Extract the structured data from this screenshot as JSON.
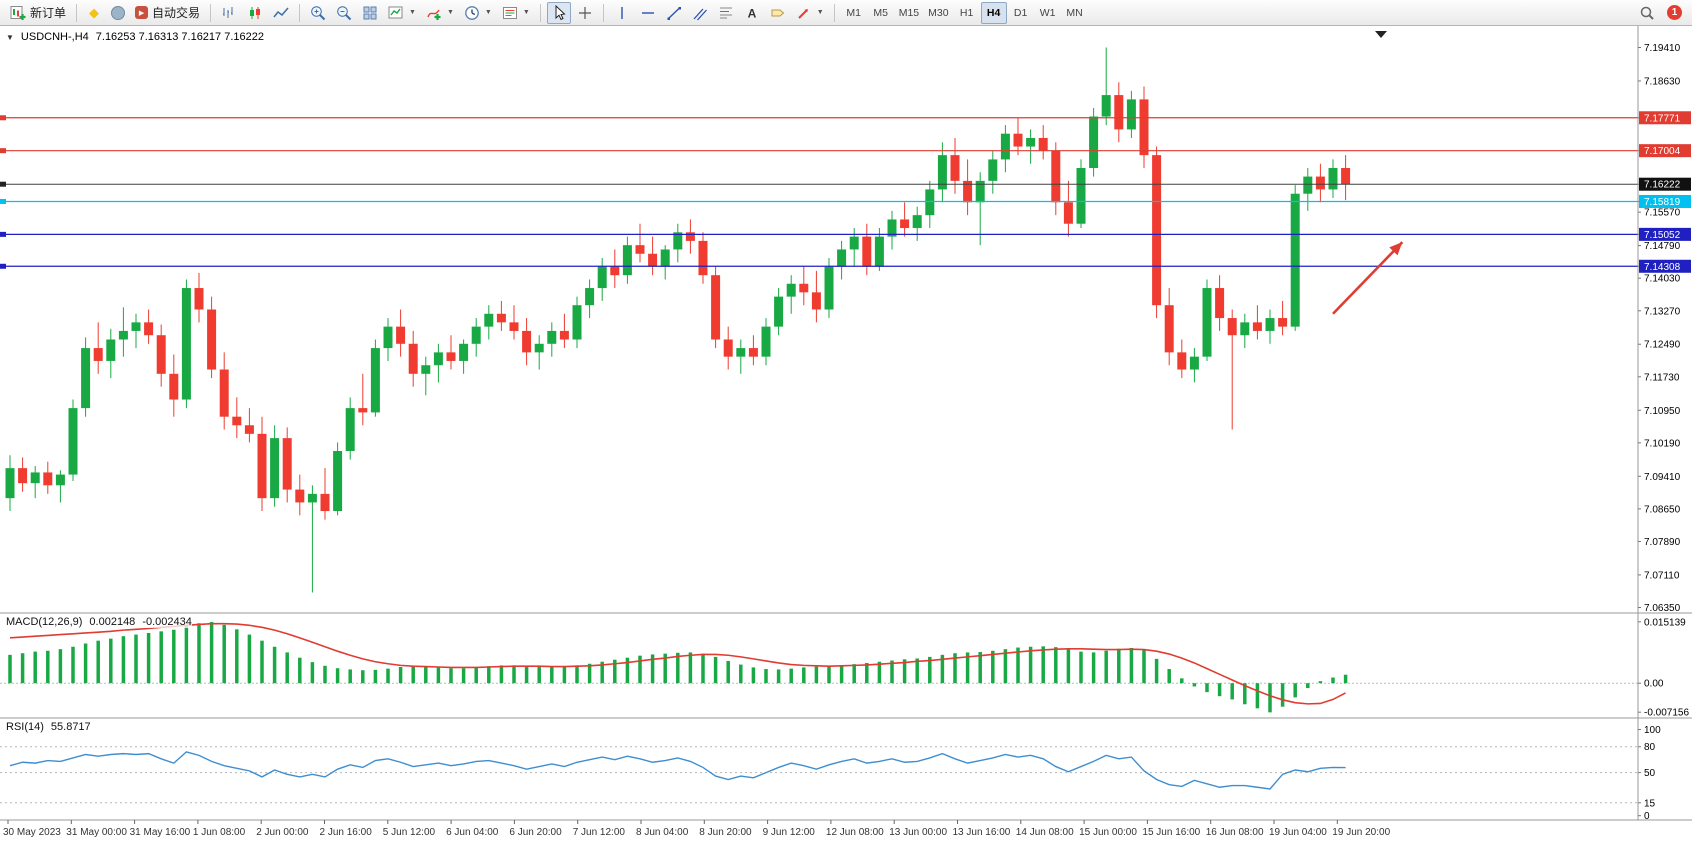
{
  "toolbar": {
    "new_order_label": "新订单",
    "autotrading_label": "自动交易",
    "timeframes": [
      "M1",
      "M5",
      "M15",
      "M30",
      "H1",
      "H4",
      "D1",
      "W1",
      "MN"
    ],
    "active_timeframe": "H4",
    "notification_count": "1"
  },
  "chart_data": {
    "main": {
      "type": "candlestick",
      "symbol": "USDCNH-,H4",
      "ohlc_label": "7.16253 7.16313 7.16217 7.16222",
      "ylim": [
        7.0635,
        7.1941
      ],
      "up_color": "#18a944",
      "down_color": "#ef3b30",
      "y_ticks": [
        {
          "label": "7.19410"
        },
        {
          "label": "7.18630"
        },
        {
          "label": "7.17771",
          "badge": "#e03c32"
        },
        {
          "label": "7.17004",
          "badge": "#e03c32"
        },
        {
          "label": "7.16222",
          "badge": "#111111"
        },
        {
          "label": "7.15819",
          "badge": "#00c0ef"
        },
        {
          "label": "7.15570"
        },
        {
          "label": "7.15052",
          "badge": "#2020c0"
        },
        {
          "label": "7.14790"
        },
        {
          "label": "7.14308",
          "badge": "#2020c0"
        },
        {
          "label": "7.14030"
        },
        {
          "label": "7.13270"
        },
        {
          "label": "7.12490"
        },
        {
          "label": "7.11730"
        },
        {
          "label": "7.10950"
        },
        {
          "label": "7.10190"
        },
        {
          "label": "7.09410"
        },
        {
          "label": "7.08650"
        },
        {
          "label": "7.07890"
        },
        {
          "label": "7.07110"
        },
        {
          "label": "7.06350"
        }
      ],
      "hlines": [
        {
          "price": 7.17771,
          "color": "#e03c32"
        },
        {
          "price": 7.17004,
          "color": "#e03c32"
        },
        {
          "price": 7.15819,
          "color": "#00c0ef"
        },
        {
          "price": 7.15052,
          "color": "#2020c0"
        },
        {
          "price": 7.14308,
          "color": "#2020c0"
        }
      ],
      "current_price": {
        "value": 7.16222,
        "line_color": "#404040"
      },
      "arrow_annotation": {
        "color": "#e03c32",
        "from": {
          "index": 105.0,
          "price": 7.132
        },
        "to": {
          "index": 110.5,
          "price": 7.1487
        }
      },
      "x_labels": [
        "30 May 2023",
        "31 May 00:00",
        "31 May 16:00",
        "1 Jun 08:00",
        "2 Jun 00:00",
        "2 Jun 16:00",
        "5 Jun 12:00",
        "6 Jun 04:00",
        "6 Jun 20:00",
        "7 Jun 12:00",
        "8 Jun 04:00",
        "8 Jun 20:00",
        "9 Jun 12:00",
        "12 Jun 08:00",
        "13 Jun 00:00",
        "13 Jun 16:00",
        "14 Jun 08:00",
        "15 Jun 00:00",
        "15 Jun 16:00",
        "16 Jun 08:00",
        "19 Jun 04:00",
        "19 Jun 20:00"
      ],
      "candles": [
        [
          7.089,
          7.099,
          7.086,
          7.096
        ],
        [
          7.096,
          7.0985,
          7.0905,
          7.0925
        ],
        [
          7.0925,
          7.0965,
          7.089,
          7.095
        ],
        [
          7.095,
          7.0975,
          7.09,
          7.092
        ],
        [
          7.092,
          7.0955,
          7.088,
          7.0945
        ],
        [
          7.0945,
          7.112,
          7.093,
          7.11
        ],
        [
          7.11,
          7.1265,
          7.108,
          7.124
        ],
        [
          7.124,
          7.13,
          7.118,
          7.121
        ],
        [
          7.121,
          7.1285,
          7.117,
          7.126
        ],
        [
          7.126,
          7.1335,
          7.122,
          7.128
        ],
        [
          7.128,
          7.132,
          7.124,
          7.13
        ],
        [
          7.13,
          7.133,
          7.125,
          7.127
        ],
        [
          7.127,
          7.1295,
          7.115,
          7.118
        ],
        [
          7.118,
          7.1225,
          7.108,
          7.112
        ],
        [
          7.112,
          7.14,
          7.11,
          7.138
        ],
        [
          7.138,
          7.1415,
          7.13,
          7.133
        ],
        [
          7.133,
          7.136,
          7.117,
          7.119
        ],
        [
          7.119,
          7.123,
          7.105,
          7.108
        ],
        [
          7.108,
          7.1125,
          7.103,
          7.106
        ],
        [
          7.106,
          7.11,
          7.102,
          7.104
        ],
        [
          7.104,
          7.108,
          7.086,
          7.089
        ],
        [
          7.089,
          7.106,
          7.087,
          7.103
        ],
        [
          7.103,
          7.1055,
          7.088,
          7.091
        ],
        [
          7.091,
          7.0945,
          7.085,
          7.088
        ],
        [
          7.088,
          7.092,
          7.067,
          7.09
        ],
        [
          7.09,
          7.096,
          7.084,
          7.086
        ],
        [
          7.086,
          7.102,
          7.085,
          7.1
        ],
        [
          7.1,
          7.1125,
          7.098,
          7.11
        ],
        [
          7.11,
          7.118,
          7.106,
          7.109
        ],
        [
          7.109,
          7.126,
          7.108,
          7.124
        ],
        [
          7.124,
          7.131,
          7.121,
          7.129
        ],
        [
          7.129,
          7.133,
          7.122,
          7.125
        ],
        [
          7.125,
          7.128,
          7.115,
          7.118
        ],
        [
          7.118,
          7.122,
          7.113,
          7.12
        ],
        [
          7.12,
          7.125,
          7.116,
          7.123
        ],
        [
          7.123,
          7.127,
          7.119,
          7.121
        ],
        [
          7.121,
          7.126,
          7.118,
          7.125
        ],
        [
          7.125,
          7.131,
          7.122,
          7.129
        ],
        [
          7.129,
          7.134,
          7.126,
          7.132
        ],
        [
          7.132,
          7.135,
          7.128,
          7.13
        ],
        [
          7.13,
          7.134,
          7.126,
          7.128
        ],
        [
          7.128,
          7.131,
          7.12,
          7.123
        ],
        [
          7.123,
          7.127,
          7.119,
          7.125
        ],
        [
          7.125,
          7.13,
          7.122,
          7.128
        ],
        [
          7.128,
          7.132,
          7.124,
          7.126
        ],
        [
          7.126,
          7.136,
          7.124,
          7.134
        ],
        [
          7.134,
          7.14,
          7.131,
          7.138
        ],
        [
          7.138,
          7.145,
          7.135,
          7.143
        ],
        [
          7.143,
          7.147,
          7.138,
          7.141
        ],
        [
          7.141,
          7.15,
          7.139,
          7.148
        ],
        [
          7.148,
          7.153,
          7.144,
          7.146
        ],
        [
          7.146,
          7.15,
          7.141,
          7.143
        ],
        [
          7.143,
          7.148,
          7.14,
          7.147
        ],
        [
          7.147,
          7.153,
          7.144,
          7.151
        ],
        [
          7.151,
          7.154,
          7.146,
          7.149
        ],
        [
          7.149,
          7.151,
          7.139,
          7.141
        ],
        [
          7.141,
          7.143,
          7.124,
          7.126
        ],
        [
          7.126,
          7.129,
          7.119,
          7.122
        ],
        [
          7.122,
          7.126,
          7.118,
          7.124
        ],
        [
          7.124,
          7.127,
          7.12,
          7.122
        ],
        [
          7.122,
          7.131,
          7.12,
          7.129
        ],
        [
          7.129,
          7.138,
          7.127,
          7.136
        ],
        [
          7.136,
          7.141,
          7.132,
          7.139
        ],
        [
          7.139,
          7.143,
          7.134,
          7.137
        ],
        [
          7.137,
          7.142,
          7.13,
          7.133
        ],
        [
          7.133,
          7.145,
          7.131,
          7.143
        ],
        [
          7.143,
          7.149,
          7.14,
          7.147
        ],
        [
          7.147,
          7.152,
          7.143,
          7.15
        ],
        [
          7.15,
          7.153,
          7.141,
          7.143
        ],
        [
          7.143,
          7.152,
          7.142,
          7.15
        ],
        [
          7.15,
          7.156,
          7.147,
          7.154
        ],
        [
          7.154,
          7.158,
          7.15,
          7.152
        ],
        [
          7.152,
          7.157,
          7.149,
          7.155
        ],
        [
          7.155,
          7.163,
          7.152,
          7.161
        ],
        [
          7.161,
          7.172,
          7.158,
          7.169
        ],
        [
          7.169,
          7.173,
          7.16,
          7.163
        ],
        [
          7.163,
          7.168,
          7.155,
          7.158
        ],
        [
          7.158,
          7.165,
          7.148,
          7.163
        ],
        [
          7.163,
          7.17,
          7.16,
          7.168
        ],
        [
          7.168,
          7.176,
          7.165,
          7.174
        ],
        [
          7.174,
          7.1777,
          7.169,
          7.171
        ],
        [
          7.171,
          7.175,
          7.167,
          7.173
        ],
        [
          7.173,
          7.176,
          7.168,
          7.17
        ],
        [
          7.17,
          7.172,
          7.155,
          7.158
        ],
        [
          7.158,
          7.163,
          7.15,
          7.153
        ],
        [
          7.153,
          7.168,
          7.152,
          7.166
        ],
        [
          7.166,
          7.18,
          7.164,
          7.178
        ],
        [
          7.178,
          7.1941,
          7.176,
          7.183
        ],
        [
          7.183,
          7.186,
          7.172,
          7.175
        ],
        [
          7.175,
          7.184,
          7.173,
          7.182
        ],
        [
          7.182,
          7.185,
          7.166,
          7.169
        ],
        [
          7.169,
          7.171,
          7.131,
          7.134
        ],
        [
          7.134,
          7.138,
          7.12,
          7.123
        ],
        [
          7.123,
          7.126,
          7.117,
          7.119
        ],
        [
          7.119,
          7.124,
          7.116,
          7.122
        ],
        [
          7.122,
          7.14,
          7.121,
          7.138
        ],
        [
          7.138,
          7.141,
          7.128,
          7.131
        ],
        [
          7.131,
          7.133,
          7.105,
          7.127
        ],
        [
          7.127,
          7.132,
          7.124,
          7.13
        ],
        [
          7.13,
          7.134,
          7.126,
          7.128
        ],
        [
          7.128,
          7.133,
          7.125,
          7.131
        ],
        [
          7.131,
          7.135,
          7.127,
          7.129
        ],
        [
          7.129,
          7.162,
          7.128,
          7.16
        ],
        [
          7.16,
          7.166,
          7.156,
          7.164
        ],
        [
          7.164,
          7.167,
          7.158,
          7.161
        ],
        [
          7.161,
          7.168,
          7.159,
          7.166
        ],
        [
          7.166,
          7.169,
          7.1585,
          7.1622
        ]
      ]
    },
    "macd": {
      "type": "bar",
      "label": "MACD(12,26,9)",
      "value_main": "0.002148",
      "value_signal": "-0.002434",
      "ylim": [
        -0.0076,
        0.0156
      ],
      "y_ticks": [
        "0.015139",
        "0.00",
        "-0.007156"
      ],
      "histogram_color": "#18a944",
      "signal_color": "#e03c32",
      "histogram": [
        0.007,
        0.0074,
        0.0078,
        0.008,
        0.0084,
        0.009,
        0.0098,
        0.0105,
        0.011,
        0.0116,
        0.012,
        0.0124,
        0.0128,
        0.0132,
        0.0142,
        0.0148,
        0.0151,
        0.0144,
        0.0133,
        0.012,
        0.0105,
        0.009,
        0.0076,
        0.0063,
        0.0052,
        0.0043,
        0.0037,
        0.0034,
        0.0032,
        0.0033,
        0.0036,
        0.004,
        0.0042,
        0.0041,
        0.0039,
        0.0037,
        0.0037,
        0.0039,
        0.0042,
        0.0044,
        0.0044,
        0.0042,
        0.004,
        0.004,
        0.0041,
        0.0044,
        0.0048,
        0.0053,
        0.0058,
        0.0063,
        0.0068,
        0.0071,
        0.0073,
        0.0075,
        0.0076,
        0.0073,
        0.0065,
        0.0055,
        0.0046,
        0.0039,
        0.0035,
        0.0034,
        0.0036,
        0.0039,
        0.0041,
        0.0042,
        0.0044,
        0.0047,
        0.005,
        0.0053,
        0.0056,
        0.0059,
        0.0061,
        0.0065,
        0.007,
        0.0074,
        0.0076,
        0.0077,
        0.008,
        0.0084,
        0.0088,
        0.009,
        0.0091,
        0.0089,
        0.0084,
        0.0078,
        0.0076,
        0.008,
        0.0085,
        0.0087,
        0.0082,
        0.006,
        0.0035,
        0.0012,
        -0.0008,
        -0.0022,
        -0.0032,
        -0.004,
        -0.0052,
        -0.0062,
        -0.0072,
        -0.0058,
        -0.0035,
        -0.0012,
        0.0005,
        0.0014,
        0.0021
      ],
      "signal": [
        0.0112,
        0.0114,
        0.0116,
        0.0118,
        0.012,
        0.0122,
        0.0124,
        0.0126,
        0.0128,
        0.0131,
        0.0133,
        0.0135,
        0.0138,
        0.014,
        0.0143,
        0.0145,
        0.0147,
        0.0147,
        0.0146,
        0.0143,
        0.0138,
        0.0131,
        0.0122,
        0.0112,
        0.0101,
        0.009,
        0.0079,
        0.0069,
        0.006,
        0.0053,
        0.0048,
        0.0044,
        0.0042,
        0.0041,
        0.004,
        0.0039,
        0.0039,
        0.0039,
        0.004,
        0.0041,
        0.0042,
        0.0042,
        0.0042,
        0.0041,
        0.0041,
        0.0042,
        0.0043,
        0.0045,
        0.0048,
        0.0051,
        0.0055,
        0.0059,
        0.0062,
        0.0066,
        0.0069,
        0.0071,
        0.0071,
        0.0069,
        0.0065,
        0.006,
        0.0055,
        0.005,
        0.0046,
        0.0044,
        0.0043,
        0.0042,
        0.0043,
        0.0044,
        0.0045,
        0.0047,
        0.0049,
        0.0051,
        0.0054,
        0.0056,
        0.0059,
        0.0062,
        0.0065,
        0.0068,
        0.0071,
        0.0074,
        0.0077,
        0.008,
        0.0082,
        0.0084,
        0.0085,
        0.0085,
        0.0084,
        0.0083,
        0.0083,
        0.0084,
        0.0083,
        0.0079,
        0.0072,
        0.0062,
        0.005,
        0.0036,
        0.0022,
        0.0008,
        -0.0006,
        -0.0019,
        -0.0031,
        -0.0041,
        -0.0048,
        -0.0051,
        -0.005,
        -0.004,
        -0.0024
      ]
    },
    "rsi": {
      "type": "line",
      "label": "RSI(14)",
      "value": "55.8717",
      "line_color": "#3e8ed0",
      "ylim": [
        0,
        100
      ],
      "levels": [
        80,
        50,
        15
      ],
      "y_ticks": [
        "100",
        "80",
        "50",
        "15",
        "0"
      ],
      "values": [
        58,
        62,
        61,
        64,
        63,
        67,
        71,
        69,
        71,
        72,
        71,
        72,
        66,
        61,
        74,
        70,
        63,
        58,
        55,
        52,
        45,
        53,
        48,
        45,
        48,
        45,
        54,
        59,
        56,
        64,
        66,
        62,
        57,
        59,
        61,
        58,
        60,
        63,
        64,
        61,
        58,
        54,
        57,
        60,
        57,
        62,
        65,
        68,
        65,
        69,
        66,
        62,
        64,
        67,
        63,
        56,
        46,
        42,
        46,
        44,
        50,
        56,
        61,
        58,
        54,
        59,
        63,
        66,
        61,
        63,
        66,
        62,
        63,
        67,
        72,
        66,
        61,
        64,
        67,
        71,
        68,
        70,
        66,
        57,
        51,
        57,
        63,
        70,
        66,
        68,
        52,
        42,
        36,
        34,
        41,
        37,
        33,
        35,
        35,
        33,
        31,
        48,
        53,
        51,
        55,
        56,
        55.87
      ]
    }
  }
}
